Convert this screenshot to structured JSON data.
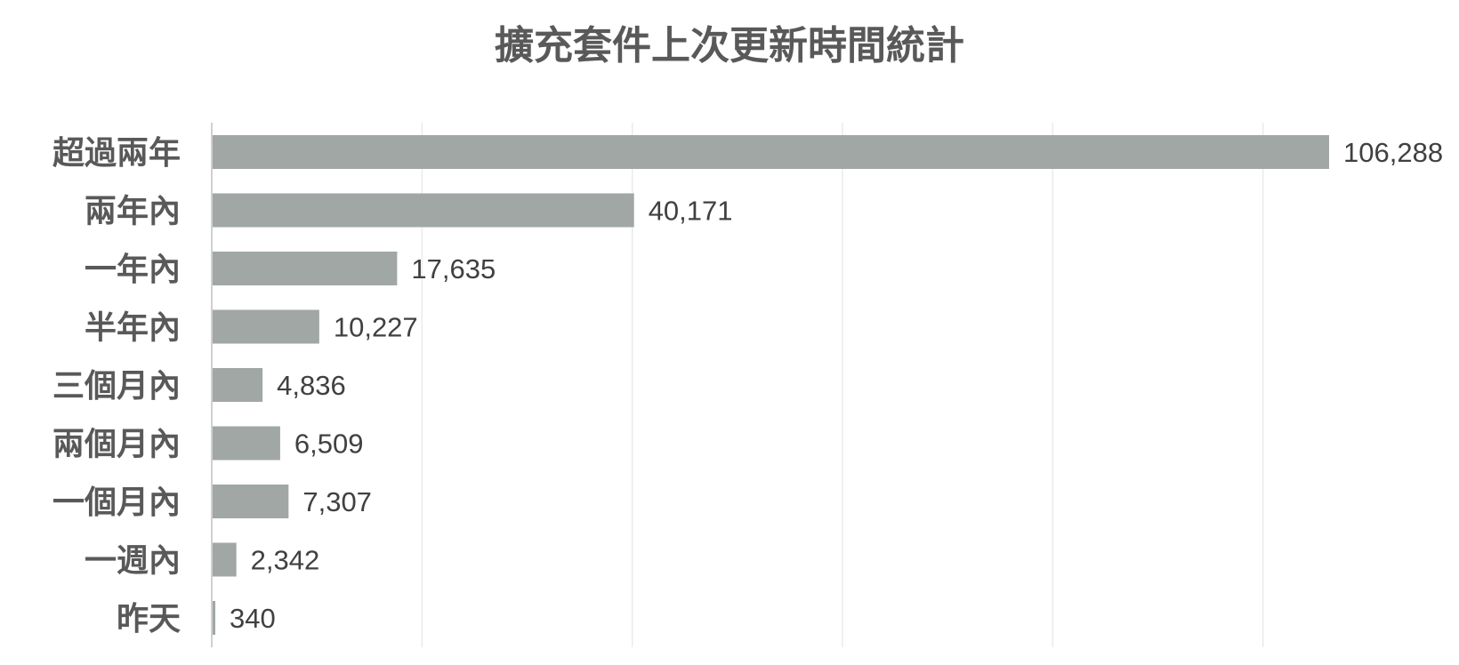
{
  "chart_data": {
    "type": "bar",
    "orientation": "horizontal",
    "title": "擴充套件上次更新時間統計",
    "categories": [
      "超過兩年",
      "兩年內",
      "一年內",
      "半年內",
      "三個月內",
      "兩個月內",
      "一個月內",
      "一週內",
      "昨天"
    ],
    "values": [
      106288,
      40171,
      17635,
      10227,
      4836,
      6509,
      7307,
      2342,
      340
    ],
    "value_labels": [
      "106,288",
      "40,171",
      "17,635",
      "10,227",
      "4,836",
      "6,509",
      "7,307",
      "2,342",
      "340"
    ],
    "xlim": [
      0,
      120000
    ],
    "grid": true,
    "legend": "none",
    "bar_color": "#a0a7a4",
    "gridline_color": "#ebebeb",
    "axis_color": "#d0d0d0",
    "category_label_color": "#595959",
    "data_label_color": "#404040",
    "title_color": "#595959"
  }
}
